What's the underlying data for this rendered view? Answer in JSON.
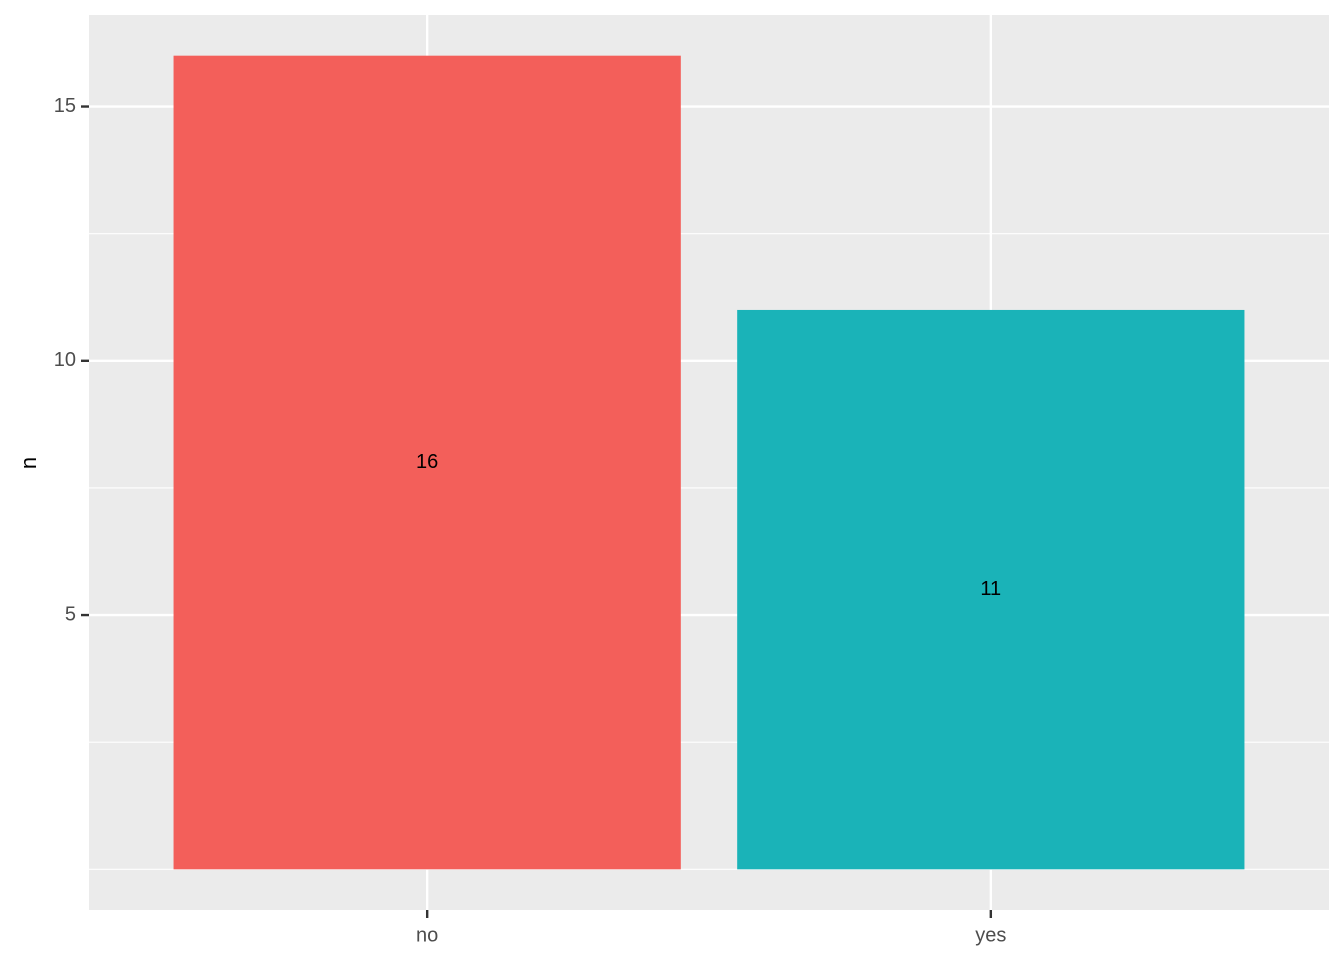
{
  "chart_data": {
    "type": "bar",
    "y_label": "n",
    "categories": [
      "no",
      "yes"
    ],
    "values": [
      16,
      11
    ],
    "colors": [
      "#f35f5a",
      "#1ab3b8"
    ],
    "ylim": [
      -0.8,
      16.8
    ],
    "yticks": [
      5,
      10,
      15
    ],
    "minor_yticks": [
      0,
      2.5,
      7.5,
      12.5
    ],
    "grid": true
  }
}
